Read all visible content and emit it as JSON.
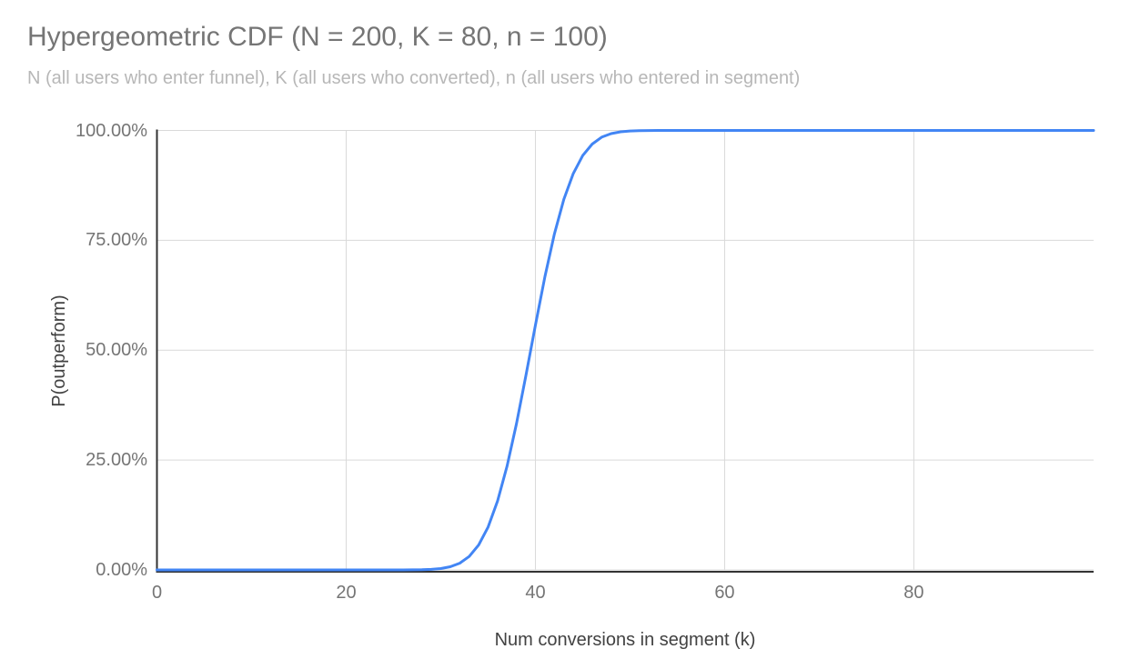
{
  "colors": {
    "background": "#ffffff",
    "title_text": "#757575",
    "subtitle_text": "#b7b7b7",
    "tick_text": "#757575",
    "axis_title_text": "#424242",
    "gridline": "#d9d9d9",
    "axis_line": "#333333",
    "line": "#4285f4"
  },
  "chart_data": {
    "type": "line",
    "title": "Hypergeometric CDF (N = 200, K = 80, n = 100)",
    "subtitle": "N (all users who enter funnel), K (all users who converted), n (all users who entered in segment)",
    "xlabel": "Num conversions in segment (k)",
    "ylabel": "P(outperform)",
    "parameters": {
      "N": 200,
      "K": 80,
      "n": 100
    },
    "xlim": [
      0,
      99
    ],
    "ylim": [
      0,
      1
    ],
    "grid": true,
    "legend": "none",
    "x_ticks": [
      {
        "value": 0,
        "label": "0"
      },
      {
        "value": 20,
        "label": "20"
      },
      {
        "value": 40,
        "label": "40"
      },
      {
        "value": 60,
        "label": "60"
      },
      {
        "value": 80,
        "label": "80"
      }
    ],
    "y_ticks": [
      {
        "value": 0.0,
        "label": "0.00%"
      },
      {
        "value": 0.25,
        "label": "25.00%"
      },
      {
        "value": 0.5,
        "label": "50.00%"
      },
      {
        "value": 0.75,
        "label": "75.00%"
      },
      {
        "value": 1.0,
        "label": "100.00%"
      }
    ],
    "series": [
      {
        "name": "P(outperform)",
        "points": [
          [
            0,
            0
          ],
          [
            5,
            0
          ],
          [
            10,
            0
          ],
          [
            15,
            0
          ],
          [
            20,
            0
          ],
          [
            24,
            0
          ],
          [
            25,
            2e-05
          ],
          [
            26,
            6e-05
          ],
          [
            27,
            0.0002
          ],
          [
            28,
            0.0005
          ],
          [
            29,
            0.0013
          ],
          [
            30,
            0.0031
          ],
          [
            31,
            0.0072
          ],
          [
            32,
            0.0154
          ],
          [
            33,
            0.0307
          ],
          [
            34,
            0.0567
          ],
          [
            35,
            0.0977
          ],
          [
            36,
            0.157
          ],
          [
            37,
            0.236
          ],
          [
            38,
            0.333
          ],
          [
            39,
            0.443
          ],
          [
            40,
            0.557
          ],
          [
            41,
            0.667
          ],
          [
            42,
            0.764
          ],
          [
            43,
            0.843
          ],
          [
            44,
            0.902
          ],
          [
            45,
            0.943
          ],
          [
            46,
            0.969
          ],
          [
            47,
            0.9846
          ],
          [
            48,
            0.9928
          ],
          [
            49,
            0.9969
          ],
          [
            50,
            0.9988
          ],
          [
            51,
            0.9995
          ],
          [
            52,
            0.9998
          ],
          [
            53,
            0.9999
          ],
          [
            54,
            1
          ],
          [
            55,
            1
          ],
          [
            60,
            1
          ],
          [
            65,
            1
          ],
          [
            70,
            1
          ],
          [
            75,
            1
          ],
          [
            80,
            1
          ],
          [
            85,
            1
          ],
          [
            90,
            1
          ],
          [
            95,
            1
          ],
          [
            99,
            1
          ]
        ]
      }
    ]
  }
}
